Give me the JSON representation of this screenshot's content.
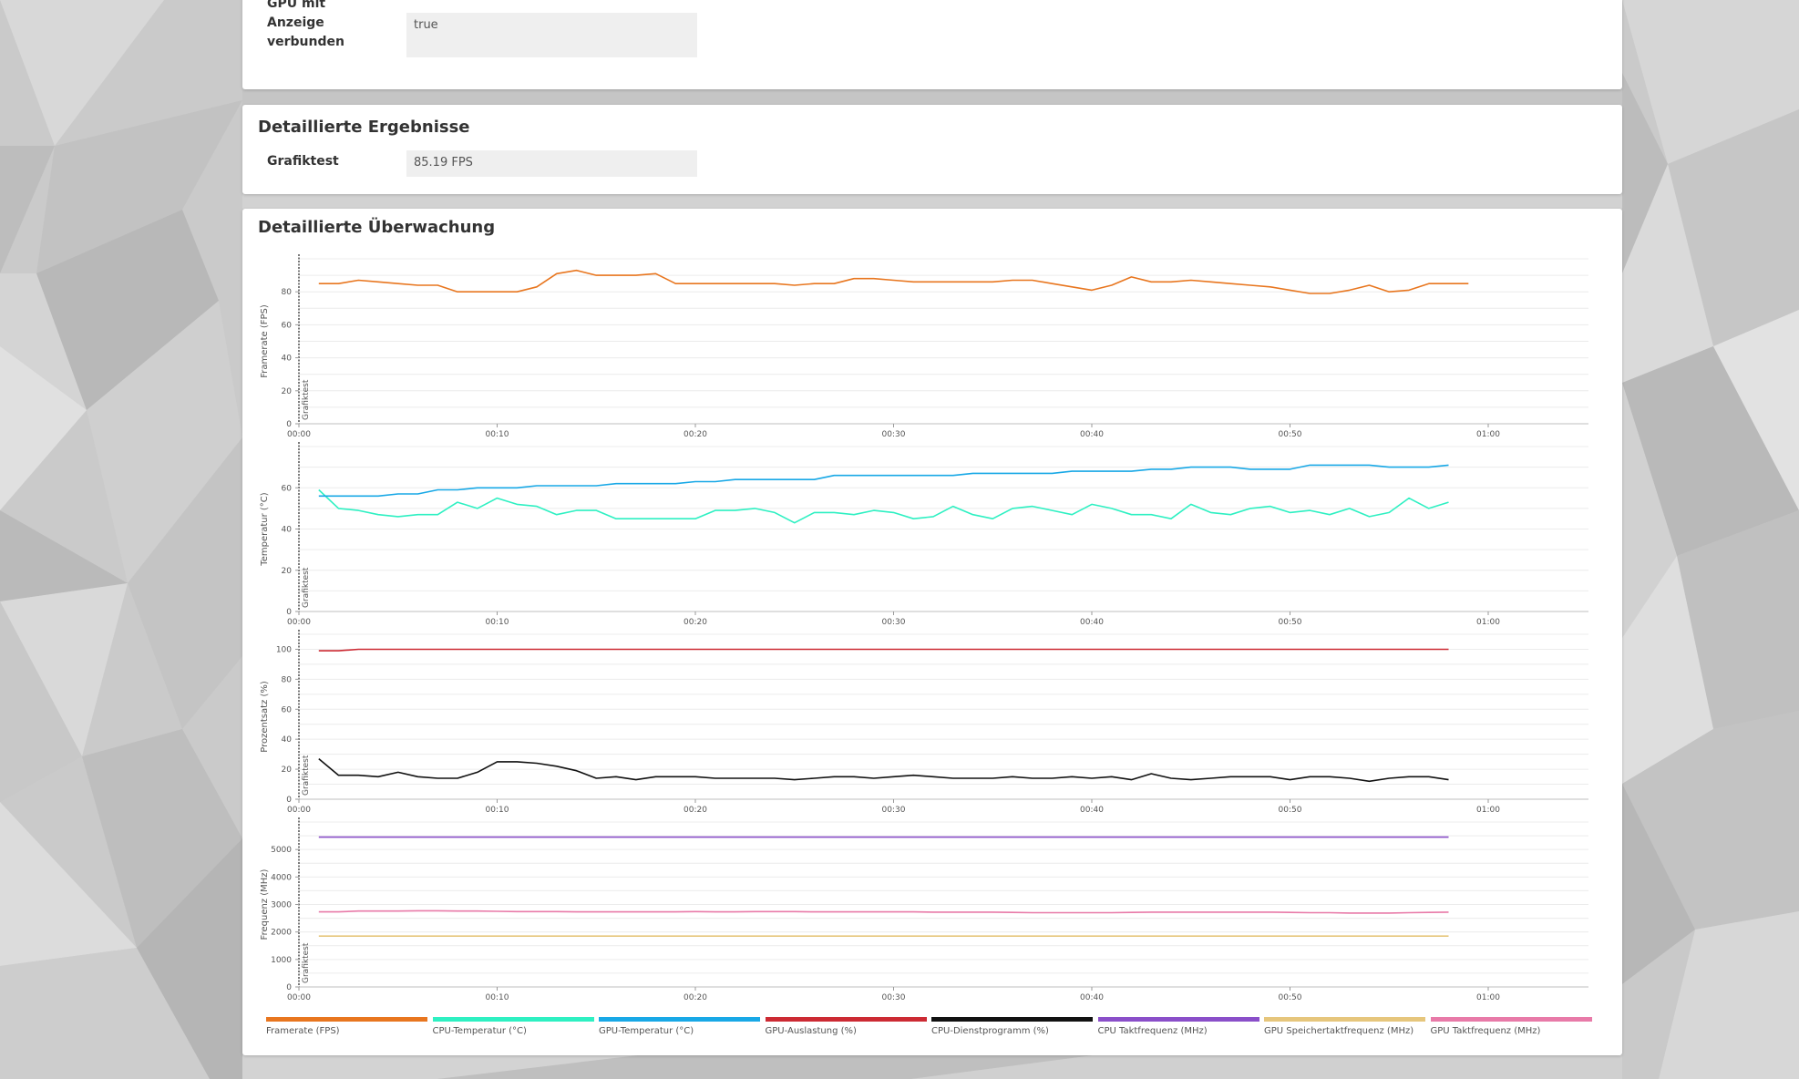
{
  "system_info": {
    "rows": [
      {
        "label": "GPU mit Anzeige verbunden",
        "value": "true"
      }
    ]
  },
  "detailed_results": {
    "title": "Detaillierte Ergebnisse",
    "rows": [
      {
        "label": "Grafiktest",
        "value": "85.19 FPS"
      }
    ]
  },
  "monitoring": {
    "title": "Detaillierte Überwachung",
    "legend": [
      {
        "label": "Framerate (FPS)",
        "color": "#e8761f"
      },
      {
        "label": "CPU-Temperatur (°C)",
        "color": "#2ef0c2"
      },
      {
        "label": "GPU-Temperatur (°C)",
        "color": "#18a8e6"
      },
      {
        "label": "GPU-Auslastung (%)",
        "color": "#cc2a33"
      },
      {
        "label": "CPU-Dienstprogramm (%)",
        "color": "#111111"
      },
      {
        "label": "CPU Taktfrequenz (MHz)",
        "color": "#8a4fc9"
      },
      {
        "label": "GPU Speichertaktfrequenz (MHz)",
        "color": "#e6c67c"
      },
      {
        "label": "GPU Taktfrequenz (MHz)",
        "color": "#e87aa8"
      }
    ]
  },
  "chart_data": [
    {
      "type": "line",
      "ylabel": "Framerate (FPS)",
      "x_ticks": [
        "00:00",
        "00:10",
        "00:20",
        "00:30",
        "00:40",
        "00:50",
        "01:00"
      ],
      "x_range_seconds": [
        0,
        65
      ],
      "y_ticks": [
        0,
        20,
        40,
        60,
        80
      ],
      "ylim": [
        0,
        100
      ],
      "marker_label": "Grafiktest",
      "grid": true,
      "x": [
        1,
        2,
        3,
        4,
        5,
        6,
        7,
        8,
        9,
        10,
        11,
        12,
        13,
        14,
        15,
        16,
        17,
        18,
        19,
        20,
        21,
        22,
        23,
        24,
        25,
        26,
        27,
        28,
        29,
        30,
        31,
        32,
        33,
        34,
        35,
        36,
        37,
        38,
        39,
        40,
        41,
        42,
        43,
        44,
        45,
        46,
        47,
        48,
        49,
        50,
        51,
        52,
        53,
        54,
        55,
        56,
        57,
        58,
        59
      ],
      "series": [
        {
          "name": "Framerate (FPS)",
          "color": "#e8761f",
          "values": [
            85,
            85,
            87,
            86,
            85,
            84,
            84,
            80,
            80,
            80,
            80,
            83,
            91,
            93,
            90,
            90,
            90,
            91,
            85,
            85,
            85,
            85,
            85,
            85,
            84,
            85,
            85,
            88,
            88,
            87,
            86,
            86,
            86,
            86,
            86,
            87,
            87,
            85,
            83,
            81,
            84,
            89,
            86,
            86,
            87,
            86,
            85,
            84,
            83,
            81,
            79,
            79,
            81,
            84,
            80,
            81,
            85,
            85,
            85
          ]
        }
      ]
    },
    {
      "type": "line",
      "ylabel": "Temperatur (°C)",
      "x_ticks": [
        "00:00",
        "00:10",
        "00:20",
        "00:30",
        "00:40",
        "00:50",
        "01:00"
      ],
      "x_range_seconds": [
        0,
        65
      ],
      "y_ticks": [
        0,
        20,
        40,
        60
      ],
      "ylim": [
        0,
        80
      ],
      "marker_label": "Grafiktest",
      "grid": true,
      "x": [
        1,
        2,
        3,
        4,
        5,
        6,
        7,
        8,
        9,
        10,
        11,
        12,
        13,
        14,
        15,
        16,
        17,
        18,
        19,
        20,
        21,
        22,
        23,
        24,
        25,
        26,
        27,
        28,
        29,
        30,
        31,
        32,
        33,
        34,
        35,
        36,
        37,
        38,
        39,
        40,
        41,
        42,
        43,
        44,
        45,
        46,
        47,
        48,
        49,
        50,
        51,
        52,
        53,
        54,
        55,
        56,
        57,
        58
      ],
      "series": [
        {
          "name": "CPU-Temperatur (°C)",
          "color": "#2ef0c2",
          "values": [
            59,
            50,
            49,
            47,
            46,
            47,
            47,
            53,
            50,
            55,
            52,
            51,
            47,
            49,
            49,
            45,
            45,
            45,
            45,
            45,
            49,
            49,
            50,
            48,
            43,
            48,
            48,
            47,
            49,
            48,
            45,
            46,
            51,
            47,
            45,
            50,
            51,
            49,
            47,
            52,
            50,
            47,
            47,
            45,
            52,
            48,
            47,
            50,
            51,
            48,
            49,
            47,
            50,
            46,
            48,
            55,
            50,
            53
          ]
        },
        {
          "name": "GPU-Temperatur (°C)",
          "color": "#18a8e6",
          "values": [
            56,
            56,
            56,
            56,
            57,
            57,
            59,
            59,
            60,
            60,
            60,
            61,
            61,
            61,
            61,
            62,
            62,
            62,
            62,
            63,
            63,
            64,
            64,
            64,
            64,
            64,
            66,
            66,
            66,
            66,
            66,
            66,
            66,
            67,
            67,
            67,
            67,
            67,
            68,
            68,
            68,
            68,
            69,
            69,
            70,
            70,
            70,
            69,
            69,
            69,
            71,
            71,
            71,
            71,
            70,
            70,
            70,
            71
          ]
        }
      ]
    },
    {
      "type": "line",
      "ylabel": "Prozentsatz (%)",
      "x_ticks": [
        "00:00",
        "00:10",
        "00:20",
        "00:30",
        "00:40",
        "00:50",
        "01:00"
      ],
      "x_range_seconds": [
        0,
        65
      ],
      "y_ticks": [
        0,
        20,
        40,
        60,
        80,
        100
      ],
      "ylim": [
        0,
        110
      ],
      "marker_label": "Grafiktest",
      "grid": true,
      "x": [
        1,
        2,
        3,
        4,
        5,
        6,
        7,
        8,
        9,
        10,
        11,
        12,
        13,
        14,
        15,
        16,
        17,
        18,
        19,
        20,
        21,
        22,
        23,
        24,
        25,
        26,
        27,
        28,
        29,
        30,
        31,
        32,
        33,
        34,
        35,
        36,
        37,
        38,
        39,
        40,
        41,
        42,
        43,
        44,
        45,
        46,
        47,
        48,
        49,
        50,
        51,
        52,
        53,
        54,
        55,
        56,
        57,
        58
      ],
      "series": [
        {
          "name": "GPU-Auslastung (%)",
          "color": "#cc2a33",
          "values": [
            99,
            99,
            100,
            100,
            100,
            100,
            100,
            100,
            100,
            100,
            100,
            100,
            100,
            100,
            100,
            100,
            100,
            100,
            100,
            100,
            100,
            100,
            100,
            100,
            100,
            100,
            100,
            100,
            100,
            100,
            100,
            100,
            100,
            100,
            100,
            100,
            100,
            100,
            100,
            100,
            100,
            100,
            100,
            100,
            100,
            100,
            100,
            100,
            100,
            100,
            100,
            100,
            100,
            100,
            100,
            100,
            100,
            100
          ]
        },
        {
          "name": "CPU-Dienstprogramm (%)",
          "color": "#111111",
          "values": [
            27,
            16,
            16,
            15,
            18,
            15,
            14,
            14,
            18,
            25,
            25,
            24,
            22,
            19,
            14,
            15,
            13,
            15,
            15,
            15,
            14,
            14,
            14,
            14,
            13,
            14,
            15,
            15,
            14,
            15,
            16,
            15,
            14,
            14,
            14,
            15,
            14,
            14,
            15,
            14,
            15,
            13,
            17,
            14,
            13,
            14,
            15,
            15,
            15,
            13,
            15,
            15,
            14,
            12,
            14,
            15,
            15,
            13
          ]
        }
      ]
    },
    {
      "type": "line",
      "ylabel": "Frequenz (MHz)",
      "x_ticks": [
        "00:00",
        "00:10",
        "00:20",
        "00:30",
        "00:40",
        "00:50",
        "01:00"
      ],
      "x_range_seconds": [
        0,
        65
      ],
      "y_ticks": [
        0,
        1000,
        2000,
        3000,
        4000,
        5000
      ],
      "ylim": [
        0,
        6000
      ],
      "marker_label": "Grafiktest",
      "grid": true,
      "x": [
        1,
        2,
        3,
        4,
        5,
        6,
        7,
        8,
        9,
        10,
        11,
        12,
        13,
        14,
        15,
        16,
        17,
        18,
        19,
        20,
        21,
        22,
        23,
        24,
        25,
        26,
        27,
        28,
        29,
        30,
        31,
        32,
        33,
        34,
        35,
        36,
        37,
        38,
        39,
        40,
        41,
        42,
        43,
        44,
        45,
        46,
        47,
        48,
        49,
        50,
        51,
        52,
        53,
        54,
        55,
        56,
        57,
        58
      ],
      "series": [
        {
          "name": "CPU Taktfrequenz (MHz)",
          "color": "#8a4fc9",
          "values": [
            5450,
            5450,
            5450,
            5450,
            5450,
            5450,
            5450,
            5450,
            5450,
            5450,
            5450,
            5450,
            5450,
            5450,
            5450,
            5450,
            5450,
            5450,
            5450,
            5450,
            5450,
            5450,
            5450,
            5450,
            5450,
            5450,
            5450,
            5450,
            5450,
            5450,
            5450,
            5450,
            5450,
            5450,
            5450,
            5450,
            5450,
            5450,
            5450,
            5450,
            5450,
            5450,
            5450,
            5450,
            5450,
            5450,
            5450,
            5450,
            5450,
            5450,
            5450,
            5450,
            5450,
            5450,
            5450,
            5450,
            5450,
            5450
          ]
        },
        {
          "name": "GPU Speichertaktfrequenz (MHz)",
          "color": "#e6c67c",
          "values": [
            1850,
            1850,
            1850,
            1850,
            1850,
            1850,
            1850,
            1850,
            1850,
            1850,
            1850,
            1850,
            1850,
            1850,
            1850,
            1850,
            1850,
            1850,
            1850,
            1850,
            1850,
            1850,
            1850,
            1850,
            1850,
            1850,
            1850,
            1850,
            1850,
            1850,
            1850,
            1850,
            1850,
            1850,
            1850,
            1850,
            1850,
            1850,
            1850,
            1850,
            1850,
            1850,
            1850,
            1850,
            1850,
            1850,
            1850,
            1850,
            1850,
            1850,
            1850,
            1850,
            1850,
            1850,
            1850,
            1850,
            1850,
            1850
          ]
        },
        {
          "name": "GPU Taktfrequenz (MHz)",
          "color": "#e87aa8",
          "values": [
            2730,
            2730,
            2760,
            2760,
            2760,
            2770,
            2770,
            2760,
            2760,
            2750,
            2740,
            2740,
            2740,
            2730,
            2730,
            2730,
            2730,
            2730,
            2730,
            2740,
            2730,
            2730,
            2740,
            2740,
            2740,
            2730,
            2730,
            2730,
            2730,
            2730,
            2730,
            2720,
            2720,
            2720,
            2720,
            2710,
            2700,
            2700,
            2700,
            2700,
            2700,
            2710,
            2720,
            2720,
            2720,
            2720,
            2720,
            2720,
            2720,
            2710,
            2700,
            2700,
            2690,
            2690,
            2690,
            2700,
            2710,
            2720
          ]
        }
      ]
    }
  ]
}
